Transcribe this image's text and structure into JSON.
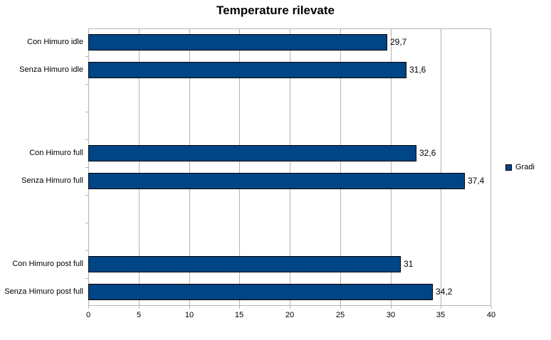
{
  "chart_data": {
    "type": "bar",
    "orientation": "horizontal",
    "title": "Temperature rilevate",
    "categories": [
      "Con Himuro idle",
      "Senza Himuro idle",
      "",
      "",
      "Con Himuro full",
      "Senza Himuro full",
      "",
      "",
      "Con Himuro post full",
      "Senza Himuro post full"
    ],
    "series": [
      {
        "name": "Gradi",
        "values": [
          29.7,
          31.6,
          null,
          null,
          32.6,
          37.4,
          null,
          null,
          31,
          34.2
        ],
        "value_labels": [
          "29,7",
          "31,6",
          null,
          null,
          "32,6",
          "37,4",
          null,
          null,
          "31",
          "34,2"
        ]
      }
    ],
    "xlabel": "",
    "ylabel": "",
    "xlim": [
      0,
      40
    ],
    "x_ticks": [
      0,
      5,
      10,
      15,
      20,
      25,
      30,
      35,
      40
    ],
    "x_tick_labels": [
      "0",
      "5",
      "10",
      "15",
      "20",
      "25",
      "30",
      "35",
      "40"
    ],
    "grid": "vertical",
    "legend_position": "right",
    "colors": {
      "bar_fill": "#004586",
      "bar_border": "#000000",
      "grid_line": "#b3b3b3",
      "axis_line": "#b3b3b3",
      "text": "#000000",
      "background": "#ffffff"
    }
  }
}
